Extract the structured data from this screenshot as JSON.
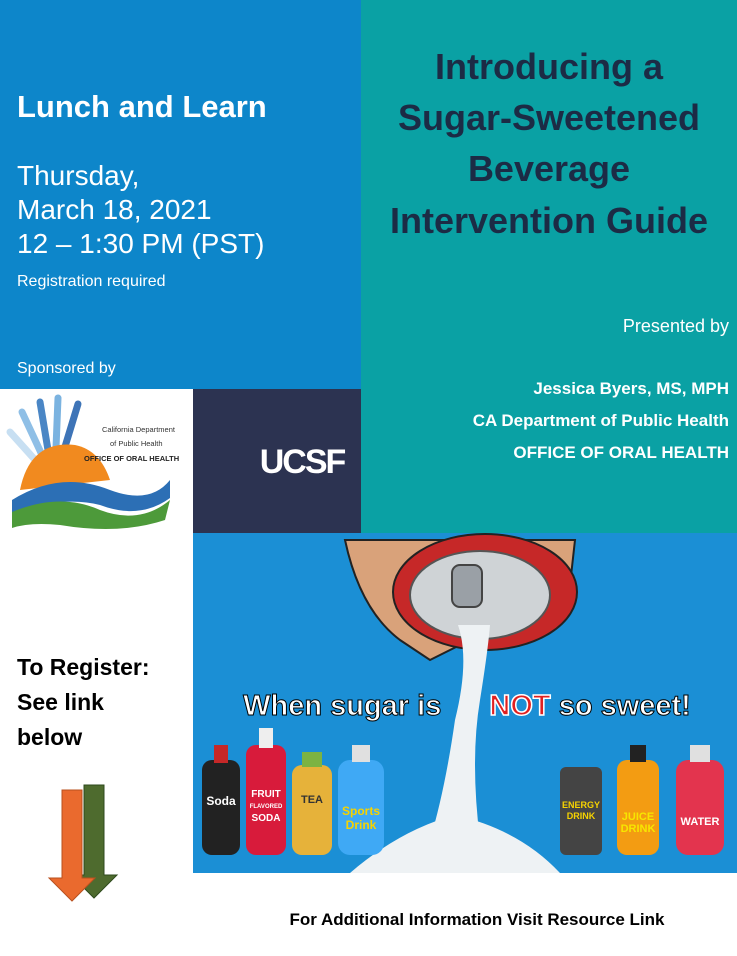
{
  "event": {
    "title": "Lunch and Learn",
    "date_lines": [
      "Thursday,",
      "March 18, 2021",
      "12 – 1:30 PM (PST)"
    ],
    "registration_note": "Registration required",
    "sponsored_label": "Sponsored by"
  },
  "headline": {
    "lines": [
      "Introducing a",
      "Sugar-Sweetened",
      "Beverage",
      "Intervention Guide"
    ]
  },
  "presenter": {
    "label": "Presented by",
    "lines": [
      "Jessica Byers, MS, MPH",
      "CA Department of Public Health",
      "OFFICE OF ORAL HEALTH"
    ]
  },
  "sponsors": {
    "cdph": [
      "California Department",
      "of Public Health",
      "OFFICE OF ORAL HEALTH"
    ],
    "ucsf": "UCSF"
  },
  "image": {
    "slogan": [
      "When sugar is",
      "NOT",
      "so sweet!"
    ],
    "bottles": [
      "Soda",
      "FRUIT",
      "FLAVORED",
      "SODA",
      "TEA",
      "Sports",
      "Drink",
      "ENERGY",
      "DRINK",
      "JUICE",
      "DRINK",
      "WATER"
    ]
  },
  "register": {
    "lines": [
      "To Register:",
      "See link",
      "below"
    ]
  },
  "footer": "For Additional Information Visit Resource Link"
}
